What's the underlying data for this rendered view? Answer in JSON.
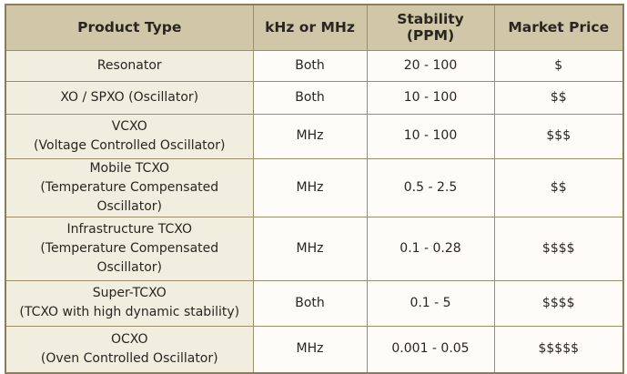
{
  "table": {
    "header": [
      "Product Type",
      "kHz or MHz",
      "Stability (PPM)",
      "Market Price"
    ],
    "rows": [
      [
        [
          "Resonator"
        ],
        "Both",
        "20 - 100",
        "$"
      ],
      [
        [
          "XO / SPXO (Oscillator)"
        ],
        "Both",
        "10 - 100",
        "$$"
      ],
      [
        [
          "VCXO",
          "(Voltage Controlled Oscillator)"
        ],
        "MHz",
        "10 - 100",
        "$$$"
      ],
      [
        [
          "Mobile TCXO",
          "(Temperature Compensated Oscillator)"
        ],
        "MHz",
        "0.5 - 2.5",
        "$$"
      ],
      [
        [
          "Infrastructure TCXO",
          "(Temperature Compensated Oscillator)"
        ],
        "MHz",
        "0.1 - 0.28",
        "$$$$"
      ],
      [
        [
          "Super-TCXO",
          "(TCXO with high dynamic stability)"
        ],
        "Both",
        "0.1 - 5",
        "$$$$"
      ],
      [
        [
          "OCXO",
          "(Oven Controlled Oscillator)"
        ],
        "MHz",
        "0.001 - 0.05",
        "$$$$$"
      ]
    ]
  }
}
